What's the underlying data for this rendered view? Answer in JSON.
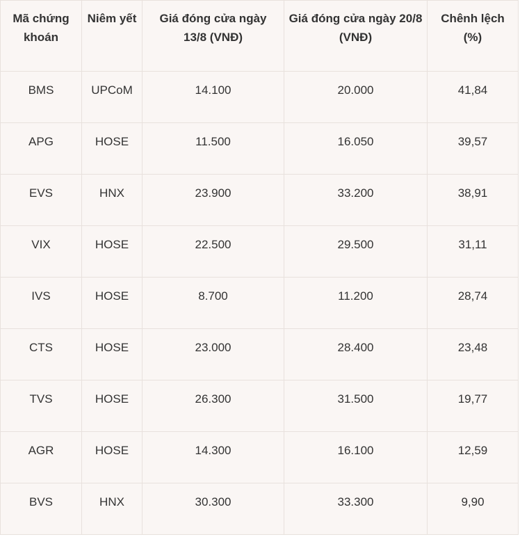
{
  "table": {
    "headers": [
      "Mã chứng khoán",
      "Niêm yết",
      "Giá đóng cửa ngày 13/8 (VNĐ)",
      "Giá đóng cửa ngày 20/8 (VNĐ)",
      "Chênh lệch (%)"
    ],
    "rows": [
      [
        "BMS",
        "UPCoM",
        "14.100",
        "20.000",
        "41,84"
      ],
      [
        "APG",
        "HOSE",
        "11.500",
        "16.050",
        "39,57"
      ],
      [
        "EVS",
        "HNX",
        "23.900",
        "33.200",
        "38,91"
      ],
      [
        "VIX",
        "HOSE",
        "22.500",
        "29.500",
        "31,11"
      ],
      [
        "IVS",
        "HOSE",
        "8.700",
        "11.200",
        "28,74"
      ],
      [
        "CTS",
        "HOSE",
        "23.000",
        "28.400",
        "23,48"
      ],
      [
        "TVS",
        "HOSE",
        "26.300",
        "31.500",
        "19,77"
      ],
      [
        "AGR",
        "HOSE",
        "14.300",
        "16.100",
        "12,59"
      ],
      [
        "BVS",
        "HNX",
        "30.300",
        "33.300",
        "9,90"
      ]
    ]
  },
  "colors": {
    "background": "#faf6f4",
    "border": "#e8e1dd",
    "text": "#333333"
  }
}
